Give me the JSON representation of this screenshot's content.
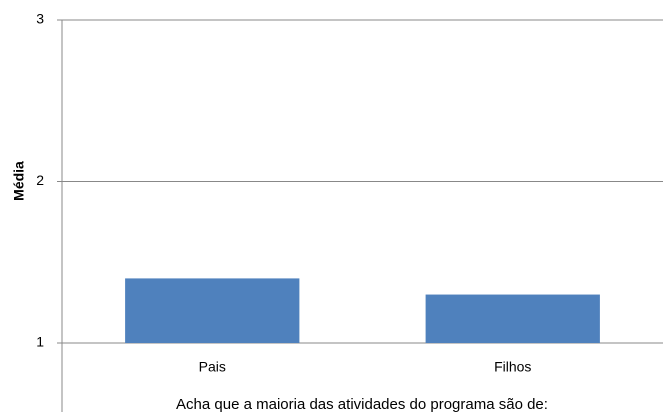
{
  "chart_data": {
    "type": "bar",
    "categories": [
      "Pais",
      "Filhos"
    ],
    "values": [
      1.4,
      1.3
    ],
    "color": "#4f81bd",
    "ylabel": "Média",
    "xlabel": "Acha que a maioria das atividades do programa são de:",
    "ylim": [
      1,
      3
    ],
    "yticks": [
      1,
      2,
      3
    ],
    "grid": true
  }
}
